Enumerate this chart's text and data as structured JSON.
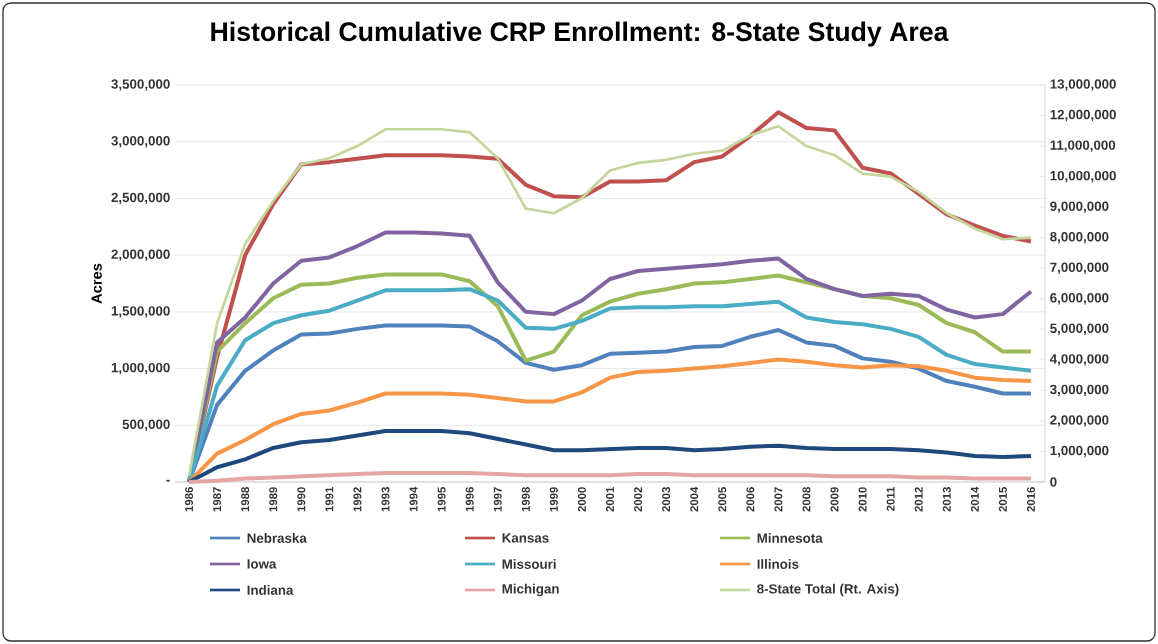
{
  "chart_data": {
    "type": "line",
    "title": "Historical Cumulative CRP Enrollment: 8-State Study Area",
    "ylabel": "Acres",
    "categories": [
      "1986",
      "1987",
      "1988",
      "1989",
      "1990",
      "1991",
      "1992",
      "1993",
      "1994",
      "1995",
      "1996",
      "1997",
      "1998",
      "1999",
      "2000",
      "2001",
      "2002",
      "2003",
      "2004",
      "2005",
      "2006",
      "2007",
      "2008",
      "2009",
      "2010",
      "2011",
      "2012",
      "2013",
      "2014",
      "2015",
      "2016"
    ],
    "series": [
      {
        "name": "Nebraska",
        "color": "#4f81bd",
        "values": [
          0,
          680000,
          980000,
          1160000,
          1300000,
          1310000,
          1350000,
          1380000,
          1380000,
          1380000,
          1370000,
          1240000,
          1050000,
          990000,
          1030000,
          1130000,
          1140000,
          1150000,
          1190000,
          1200000,
          1280000,
          1340000,
          1230000,
          1200000,
          1090000,
          1060000,
          1000000,
          890000,
          840000,
          780000,
          780000
        ]
      },
      {
        "name": "Kansas",
        "color": "#c0504d",
        "values": [
          0,
          1100000,
          2000000,
          2450000,
          2800000,
          2820000,
          2850000,
          2880000,
          2880000,
          2880000,
          2870000,
          2850000,
          2620000,
          2520000,
          2510000,
          2650000,
          2650000,
          2660000,
          2820000,
          2870000,
          3050000,
          3260000,
          3120000,
          3100000,
          2770000,
          2720000,
          2540000,
          2360000,
          2260000,
          2170000,
          2120000
        ]
      },
      {
        "name": "Minnesota",
        "color": "#9bbb59",
        "values": [
          0,
          1150000,
          1400000,
          1620000,
          1740000,
          1750000,
          1800000,
          1830000,
          1830000,
          1830000,
          1770000,
          1550000,
          1070000,
          1150000,
          1470000,
          1590000,
          1660000,
          1700000,
          1750000,
          1760000,
          1790000,
          1820000,
          1760000,
          1700000,
          1640000,
          1620000,
          1560000,
          1400000,
          1320000,
          1150000,
          1150000
        ]
      },
      {
        "name": "Iowa",
        "color": "#8064a2",
        "values": [
          0,
          1230000,
          1450000,
          1750000,
          1950000,
          1980000,
          2080000,
          2200000,
          2200000,
          2190000,
          2170000,
          1760000,
          1500000,
          1480000,
          1600000,
          1790000,
          1860000,
          1880000,
          1900000,
          1920000,
          1950000,
          1970000,
          1790000,
          1700000,
          1640000,
          1660000,
          1640000,
          1520000,
          1450000,
          1480000,
          1680000
        ]
      },
      {
        "name": "Missouri",
        "color": "#4bacc6",
        "values": [
          0,
          850000,
          1250000,
          1400000,
          1470000,
          1510000,
          1600000,
          1690000,
          1690000,
          1690000,
          1700000,
          1600000,
          1360000,
          1350000,
          1420000,
          1530000,
          1540000,
          1540000,
          1550000,
          1550000,
          1570000,
          1590000,
          1450000,
          1410000,
          1390000,
          1350000,
          1280000,
          1120000,
          1040000,
          1010000,
          980000
        ]
      },
      {
        "name": "Illinois",
        "color": "#f79646",
        "values": [
          0,
          250000,
          370000,
          510000,
          600000,
          630000,
          700000,
          780000,
          780000,
          780000,
          770000,
          740000,
          710000,
          710000,
          790000,
          920000,
          970000,
          980000,
          1000000,
          1020000,
          1050000,
          1080000,
          1060000,
          1030000,
          1010000,
          1030000,
          1020000,
          980000,
          920000,
          900000,
          890000
        ]
      },
      {
        "name": "Indiana",
        "color": "#1f497d",
        "values": [
          0,
          130000,
          200000,
          300000,
          350000,
          370000,
          410000,
          450000,
          450000,
          450000,
          430000,
          380000,
          330000,
          280000,
          280000,
          290000,
          300000,
          300000,
          280000,
          290000,
          310000,
          320000,
          300000,
          290000,
          290000,
          290000,
          280000,
          260000,
          230000,
          220000,
          230000
        ]
      },
      {
        "name": "Michigan",
        "color": "#e6a5a5",
        "values": [
          0,
          10000,
          30000,
          40000,
          50000,
          60000,
          70000,
          80000,
          80000,
          80000,
          80000,
          70000,
          60000,
          60000,
          60000,
          60000,
          70000,
          70000,
          60000,
          60000,
          60000,
          60000,
          60000,
          50000,
          50000,
          50000,
          40000,
          40000,
          30000,
          30000,
          30000
        ]
      },
      {
        "name": "8-State Total (Rt. Axis)",
        "color": "#c3d69b",
        "axis": "y2",
        "values": [
          200000,
          5200000,
          7800000,
          9200000,
          10400000,
          10600000,
          11000000,
          11550000,
          11550000,
          11550000,
          11450000,
          10600000,
          8950000,
          8800000,
          9300000,
          10200000,
          10450000,
          10550000,
          10750000,
          10850000,
          11350000,
          11650000,
          11000000,
          10700000,
          10100000,
          10000000,
          9500000,
          8800000,
          8300000,
          7950000,
          8000000
        ]
      }
    ],
    "ylim": [
      0,
      3500000
    ],
    "yticks": [
      {
        "value": 0,
        "label": "-"
      },
      {
        "value": 500000,
        "label": "500,000"
      },
      {
        "value": 1000000,
        "label": "1,000,000"
      },
      {
        "value": 1500000,
        "label": "1,500,000"
      },
      {
        "value": 2000000,
        "label": "2,000,000"
      },
      {
        "value": 2500000,
        "label": "2,500,000"
      },
      {
        "value": 3000000,
        "label": "3,000,000"
      },
      {
        "value": 3500000,
        "label": "3,500,000"
      }
    ],
    "y2lim": [
      0,
      13000000
    ],
    "y2ticks": [
      0,
      {
        "value": 1000000,
        "label": "1,000,000"
      },
      {
        "value": 2000000,
        "label": "2,000,000"
      },
      {
        "value": 3000000,
        "label": "3,000,000"
      },
      {
        "value": 4000000,
        "label": "4,000,000"
      },
      {
        "value": 5000000,
        "label": "5,000,000"
      },
      {
        "value": 6000000,
        "label": "6,000,000"
      },
      {
        "value": 7000000,
        "label": "7,000,000"
      },
      {
        "value": 8000000,
        "label": "8,000,000"
      },
      {
        "value": 9000000,
        "label": "9,000,000"
      },
      {
        "value": 10000000,
        "label": "10,000,000"
      },
      {
        "value": 11000000,
        "label": "11,000,000"
      },
      {
        "value": 12000000,
        "label": "12,000,000"
      },
      {
        "value": 13000000,
        "label": "13,000,000"
      }
    ],
    "grid": "y",
    "legend": "bottom",
    "marker": "none",
    "line_style": "solid"
  }
}
